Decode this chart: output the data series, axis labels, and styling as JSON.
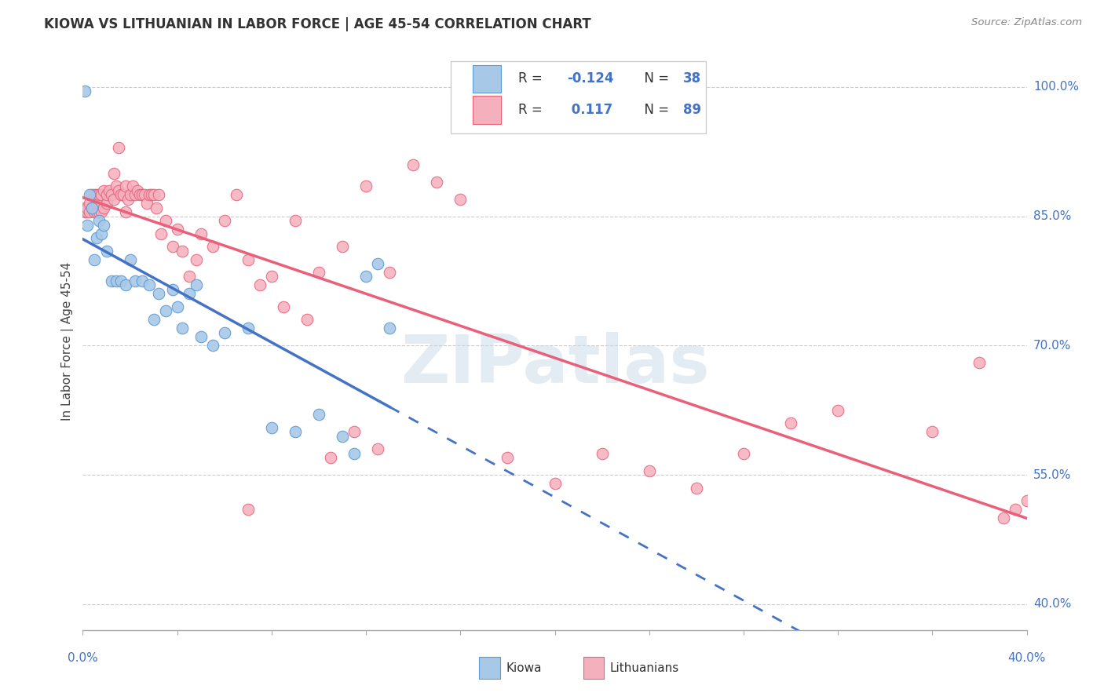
{
  "title": "KIOWA VS LITHUANIAN IN LABOR FORCE | AGE 45-54 CORRELATION CHART",
  "source": "Source: ZipAtlas.com",
  "ylabel": "In Labor Force | Age 45-54",
  "yticks": [
    0.4,
    0.55,
    0.7,
    0.85,
    1.0
  ],
  "ytick_labels": [
    "40.0%",
    "55.0%",
    "70.0%",
    "85.0%",
    "100.0%"
  ],
  "xmin": 0.0,
  "xmax": 0.4,
  "ymin": 0.37,
  "ymax": 1.04,
  "kiowa_color": "#a8c8e8",
  "lithuanian_color": "#f5b0be",
  "kiowa_edge_color": "#5b9bd5",
  "lithuanian_edge_color": "#e8607a",
  "kiowa_line_color": "#4472c4",
  "lithuanian_line_color": "#e8607a",
  "kiowa_R": -0.124,
  "kiowa_N": 38,
  "lithuanian_R": 0.117,
  "lithuanian_N": 89,
  "watermark": "ZIPatlas",
  "legend_label_1": "Kiowa",
  "legend_label_2": "Lithuanians",
  "kiowa_x": [
    0.001,
    0.002,
    0.003,
    0.004,
    0.005,
    0.006,
    0.007,
    0.008,
    0.009,
    0.01,
    0.012,
    0.014,
    0.016,
    0.018,
    0.02,
    0.022,
    0.025,
    0.028,
    0.03,
    0.032,
    0.035,
    0.038,
    0.04,
    0.042,
    0.045,
    0.048,
    0.05,
    0.055,
    0.06,
    0.07,
    0.08,
    0.09,
    0.1,
    0.11,
    0.115,
    0.12,
    0.125,
    0.13
  ],
  "kiowa_y": [
    0.995,
    0.84,
    0.875,
    0.86,
    0.8,
    0.825,
    0.845,
    0.83,
    0.84,
    0.81,
    0.775,
    0.775,
    0.775,
    0.77,
    0.8,
    0.775,
    0.775,
    0.77,
    0.73,
    0.76,
    0.74,
    0.765,
    0.745,
    0.72,
    0.76,
    0.77,
    0.71,
    0.7,
    0.715,
    0.72,
    0.605,
    0.6,
    0.62,
    0.595,
    0.575,
    0.78,
    0.795,
    0.72
  ],
  "lith_x": [
    0.001,
    0.001,
    0.002,
    0.002,
    0.003,
    0.003,
    0.004,
    0.004,
    0.005,
    0.005,
    0.005,
    0.006,
    0.006,
    0.006,
    0.007,
    0.007,
    0.007,
    0.008,
    0.008,
    0.009,
    0.009,
    0.01,
    0.01,
    0.011,
    0.012,
    0.013,
    0.013,
    0.014,
    0.015,
    0.015,
    0.016,
    0.017,
    0.018,
    0.018,
    0.019,
    0.02,
    0.021,
    0.022,
    0.023,
    0.024,
    0.025,
    0.026,
    0.027,
    0.028,
    0.029,
    0.03,
    0.031,
    0.032,
    0.033,
    0.035,
    0.038,
    0.04,
    0.042,
    0.045,
    0.048,
    0.05,
    0.055,
    0.06,
    0.065,
    0.07,
    0.075,
    0.08,
    0.09,
    0.1,
    0.11,
    0.12,
    0.13,
    0.14,
    0.15,
    0.16,
    0.18,
    0.2,
    0.22,
    0.24,
    0.26,
    0.28,
    0.3,
    0.32,
    0.36,
    0.38,
    0.39,
    0.395,
    0.4,
    0.105,
    0.115,
    0.125,
    0.095,
    0.085,
    0.07
  ],
  "lith_y": [
    0.855,
    0.86,
    0.855,
    0.86,
    0.855,
    0.865,
    0.86,
    0.875,
    0.855,
    0.86,
    0.875,
    0.855,
    0.865,
    0.875,
    0.855,
    0.865,
    0.875,
    0.855,
    0.875,
    0.86,
    0.88,
    0.865,
    0.875,
    0.88,
    0.875,
    0.87,
    0.9,
    0.885,
    0.88,
    0.93,
    0.875,
    0.875,
    0.855,
    0.885,
    0.87,
    0.875,
    0.885,
    0.875,
    0.88,
    0.875,
    0.875,
    0.875,
    0.865,
    0.875,
    0.875,
    0.875,
    0.86,
    0.875,
    0.83,
    0.845,
    0.815,
    0.835,
    0.81,
    0.78,
    0.8,
    0.83,
    0.815,
    0.845,
    0.875,
    0.8,
    0.77,
    0.78,
    0.845,
    0.785,
    0.815,
    0.885,
    0.785,
    0.91,
    0.89,
    0.87,
    0.57,
    0.54,
    0.575,
    0.555,
    0.535,
    0.575,
    0.61,
    0.625,
    0.6,
    0.68,
    0.5,
    0.51,
    0.52,
    0.57,
    0.6,
    0.58,
    0.73,
    0.745,
    0.51
  ]
}
